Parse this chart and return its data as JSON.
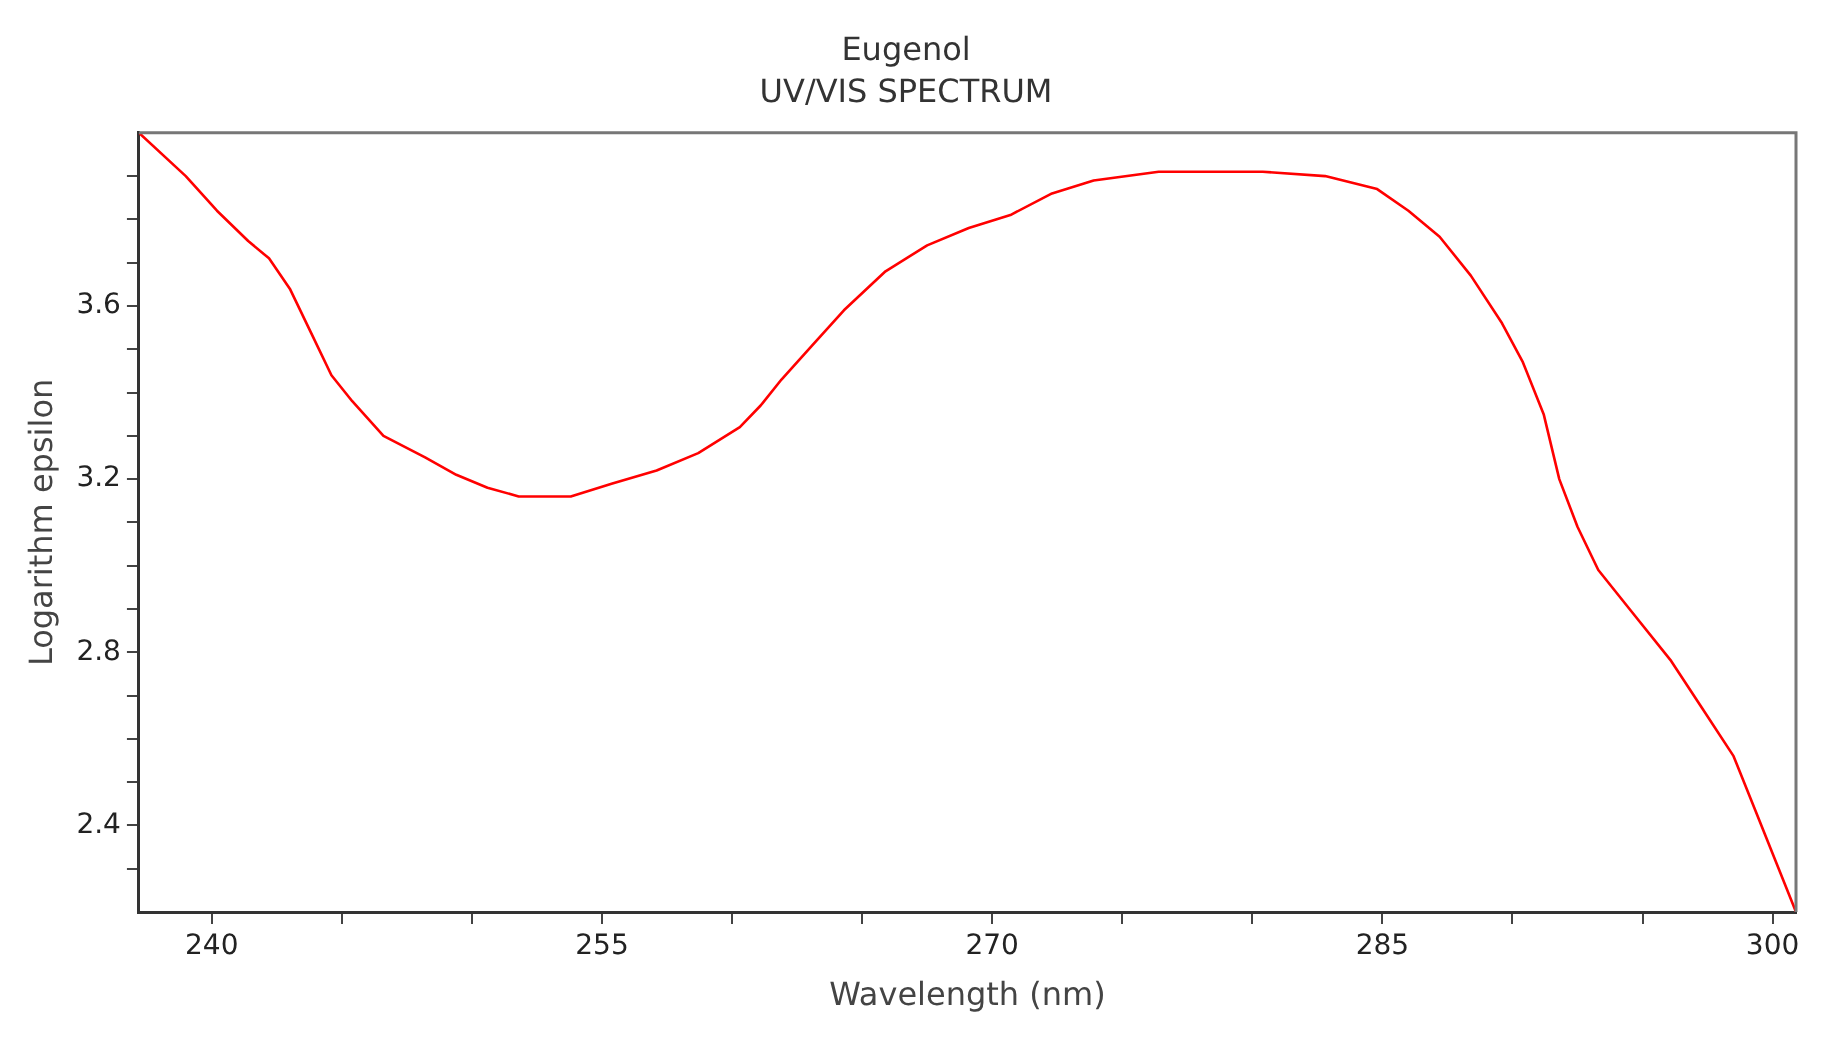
{
  "chart_data": {
    "type": "line",
    "title": "Eugenol",
    "subtitle": "UV/VIS SPECTRUM",
    "xlabel": "Wavelength (nm)",
    "ylabel": "Logarithm epsilon",
    "xlim": [
      237.2,
      300.9
    ],
    "xticks": [
      240,
      {
        "value": 245,
        "label": null
      },
      {
        "value": 250,
        "label": null
      },
      255,
      {
        "value": 260,
        "label": null
      },
      {
        "value": 265,
        "label": null
      },
      270,
      {
        "value": 275,
        "label": null
      },
      {
        "value": 280,
        "label": null
      },
      285,
      {
        "value": 290,
        "label": null
      },
      {
        "value": 295,
        "label": null
      },
      300
    ],
    "ylim": [
      2.2,
      4.0
    ],
    "yticks": [
      {
        "value": 2.3,
        "label": null
      },
      2.4,
      {
        "value": 2.5,
        "label": null
      },
      {
        "value": 2.6,
        "label": null
      },
      {
        "value": 2.7,
        "label": null
      },
      2.8,
      {
        "value": 2.9,
        "label": null
      },
      {
        "value": 3.0,
        "label": null
      },
      {
        "value": 3.1,
        "label": null
      },
      3.2,
      {
        "value": 3.3,
        "label": null
      },
      {
        "value": 3.4,
        "label": null
      },
      {
        "value": 3.5,
        "label": null
      },
      3.6,
      {
        "value": 3.7,
        "label": null
      },
      {
        "value": 3.8,
        "label": null
      },
      {
        "value": 3.9,
        "label": null
      }
    ],
    "grid": false,
    "legend": false,
    "marker": "none",
    "line_style": "solid",
    "series": [
      {
        "color": "#ff0000",
        "x": [
          237.2,
          239.0,
          240.2,
          241.4,
          242.2,
          243.0,
          243.8,
          244.6,
          245.4,
          246.6,
          248.2,
          249.4,
          250.6,
          251.8,
          253.8,
          255.4,
          257.1,
          258.7,
          260.3,
          261.1,
          261.9,
          263.1,
          264.3,
          265.9,
          267.5,
          269.1,
          270.7,
          272.3,
          273.9,
          276.4,
          280.4,
          282.8,
          284.8,
          286.0,
          287.2,
          288.4,
          289.6,
          290.4,
          291.2,
          291.8,
          292.5,
          293.3,
          294.5,
          296.1,
          297.3,
          298.5,
          299.3,
          300.1,
          300.9
        ],
        "values": [
          4.0,
          3.9,
          3.82,
          3.75,
          3.71,
          3.64,
          3.54,
          3.44,
          3.38,
          3.3,
          3.25,
          3.21,
          3.18,
          3.16,
          3.16,
          3.19,
          3.22,
          3.26,
          3.32,
          3.37,
          3.43,
          3.51,
          3.59,
          3.68,
          3.74,
          3.78,
          3.81,
          3.86,
          3.89,
          3.91,
          3.91,
          3.9,
          3.87,
          3.82,
          3.76,
          3.67,
          3.56,
          3.47,
          3.35,
          3.2,
          3.09,
          2.99,
          2.9,
          2.78,
          2.67,
          2.56,
          2.44,
          2.32,
          2.2
        ]
      }
    ]
  }
}
